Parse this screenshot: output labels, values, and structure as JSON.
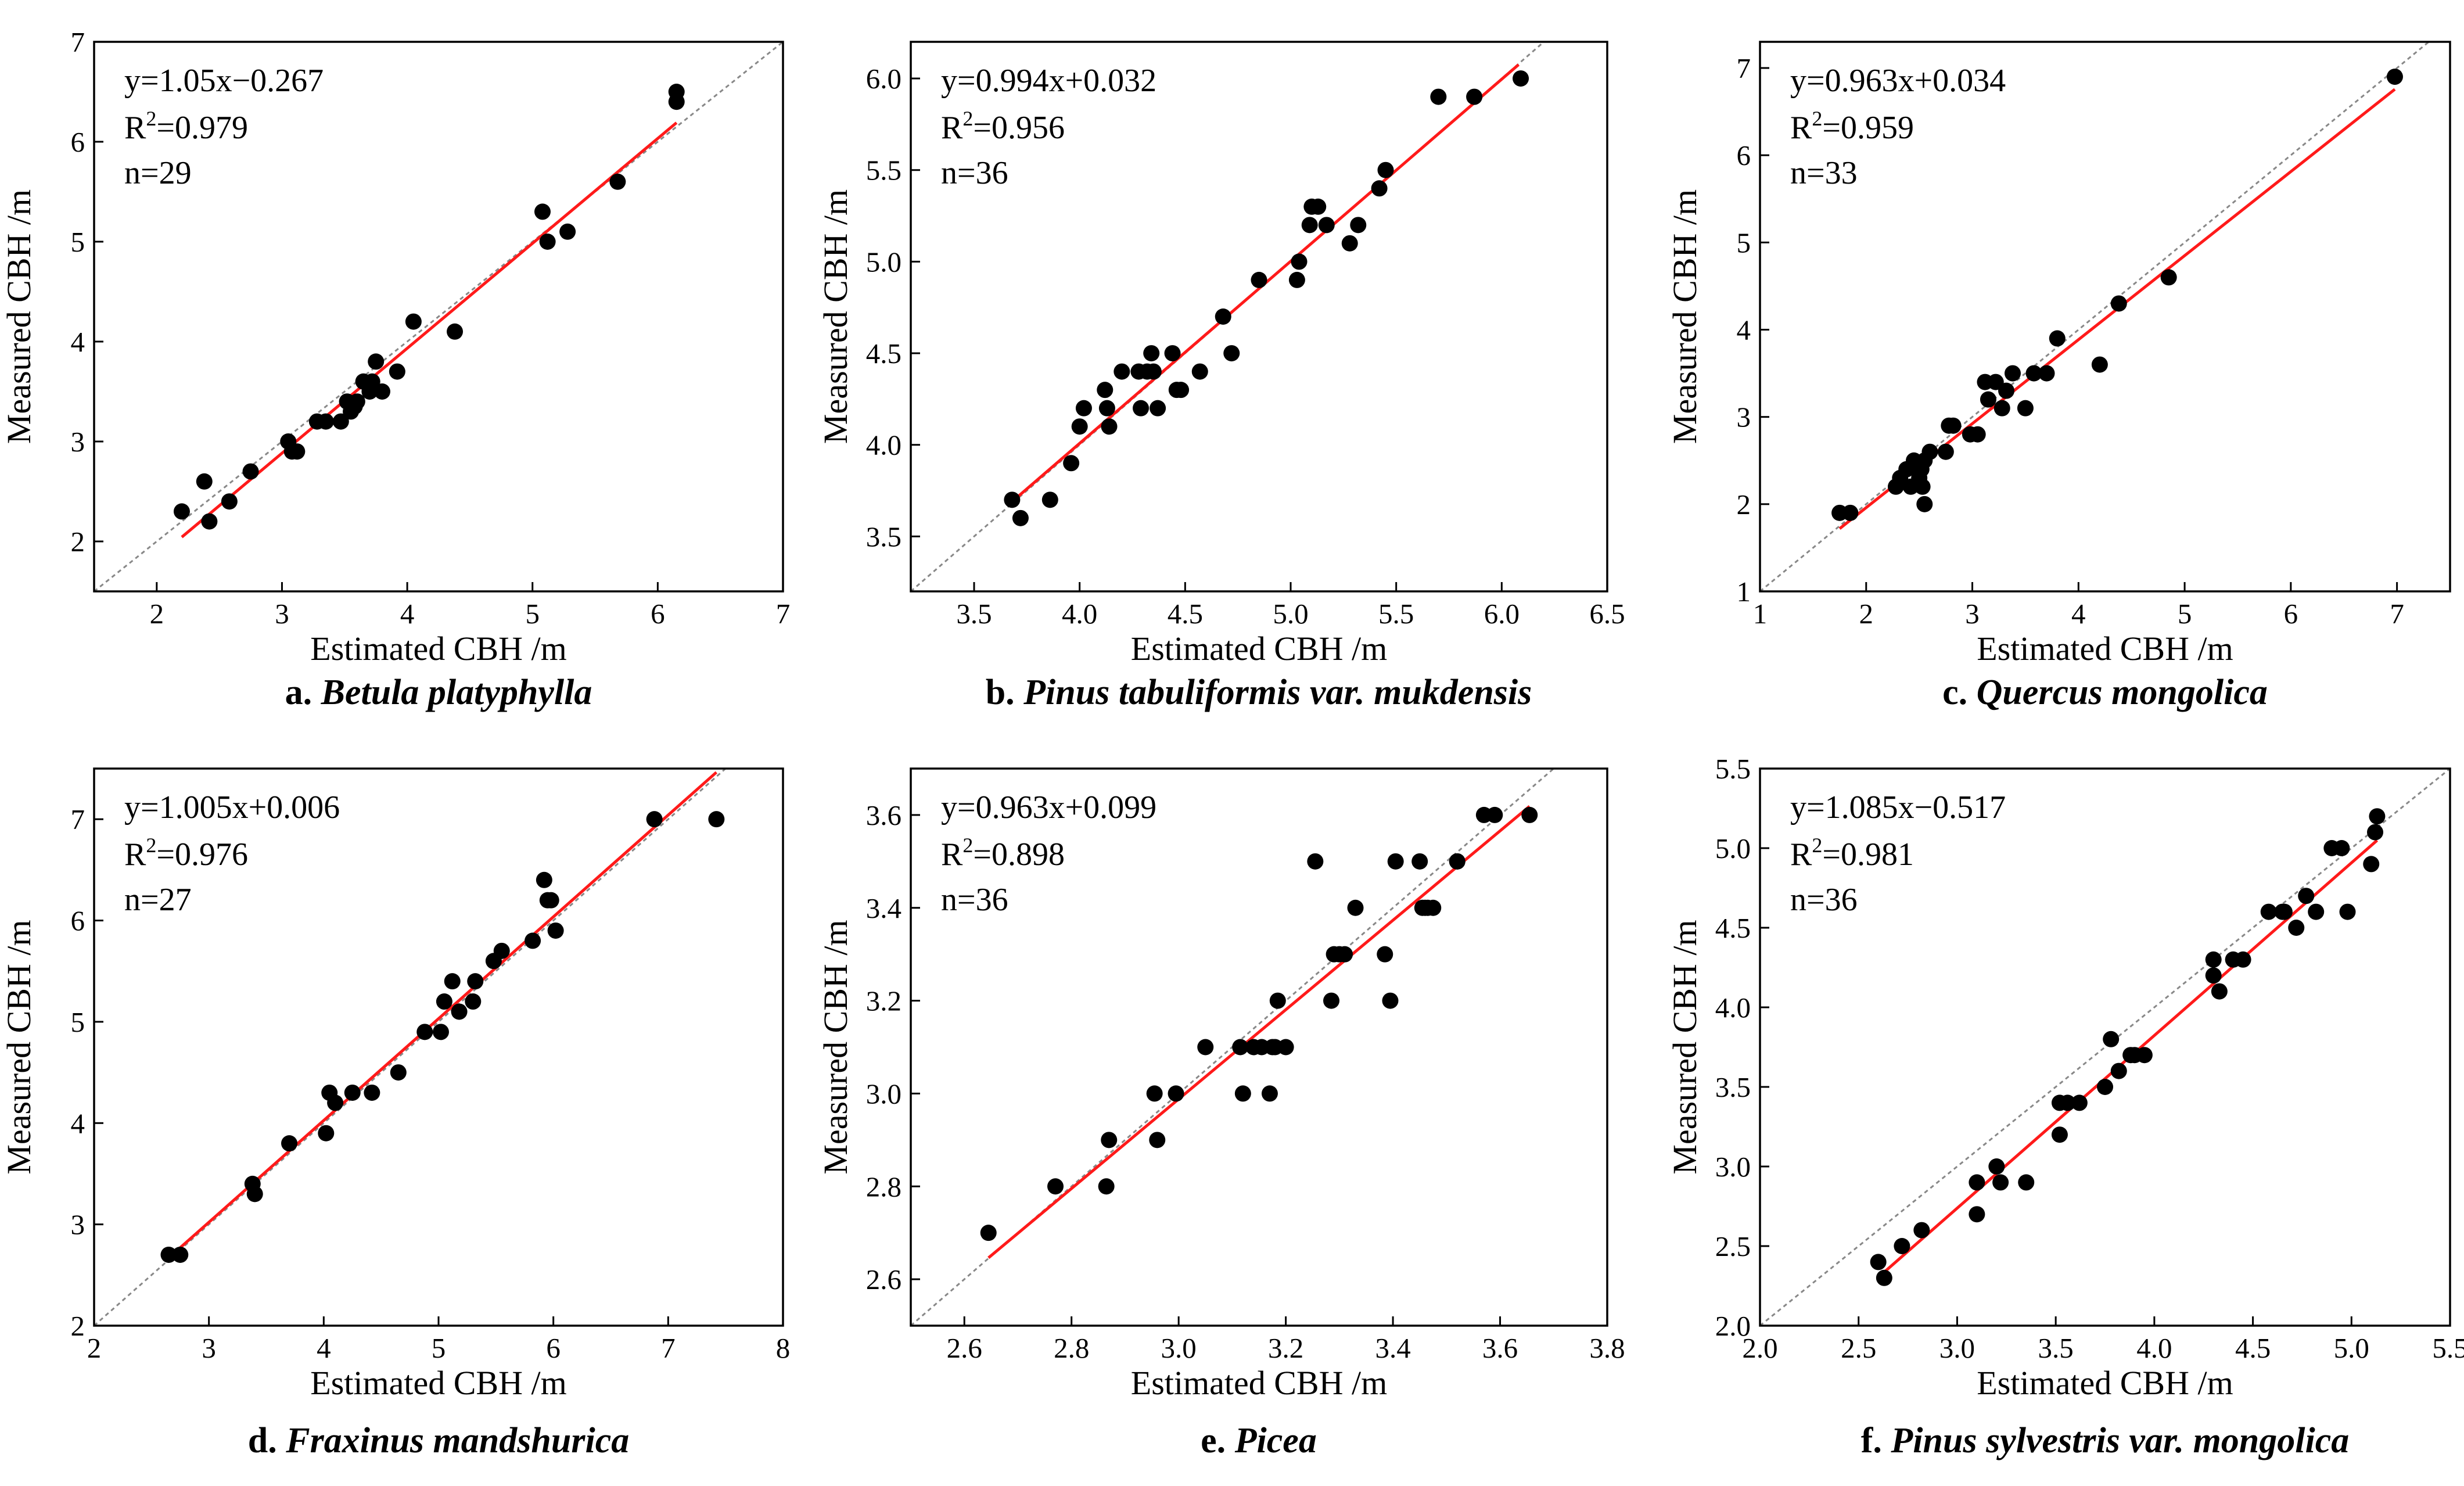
{
  "chart_data": [
    {
      "type": "scatter",
      "panel": "a",
      "caption_prefix": "a. ",
      "caption_species": "Betula platyphylla",
      "xlabel": "Estimated CBH /m",
      "ylabel": "Measured CBH /m",
      "xlim": [
        1.5,
        7
      ],
      "ylim": [
        1.5,
        7
      ],
      "xticks": [
        2,
        3,
        4,
        5,
        6,
        7
      ],
      "yticks": [
        2,
        3,
        4,
        5,
        6,
        7
      ],
      "xtick_labels": [
        "2",
        "3",
        "4",
        "5",
        "6",
        "7"
      ],
      "ytick_labels": [
        "2",
        "3",
        "4",
        "5",
        "6",
        "7"
      ],
      "equation": "y=1.05x−0.267",
      "r2_prefix": "R",
      "r2_sup": "2",
      "r2_value": "=0.979",
      "n_label": "n=29",
      "fit": {
        "slope": 1.05,
        "intercept": -0.267,
        "x_range": [
          2.2,
          6.15
        ]
      },
      "identity_line": true,
      "points": [
        [
          2.2,
          2.3
        ],
        [
          2.38,
          2.6
        ],
        [
          2.42,
          2.2
        ],
        [
          2.58,
          2.4
        ],
        [
          2.75,
          2.7
        ],
        [
          3.05,
          3.0
        ],
        [
          3.08,
          2.9
        ],
        [
          3.12,
          2.9
        ],
        [
          3.28,
          3.2
        ],
        [
          3.35,
          3.2
        ],
        [
          3.47,
          3.2
        ],
        [
          3.52,
          3.4
        ],
        [
          3.55,
          3.3
        ],
        [
          3.6,
          3.4
        ],
        [
          3.65,
          3.6
        ],
        [
          3.7,
          3.5
        ],
        [
          3.72,
          3.6
        ],
        [
          3.75,
          3.8
        ],
        [
          3.8,
          3.5
        ],
        [
          3.92,
          3.7
        ],
        [
          4.05,
          4.2
        ],
        [
          4.38,
          4.1
        ],
        [
          5.08,
          5.3
        ],
        [
          5.12,
          5.0
        ],
        [
          5.28,
          5.1
        ],
        [
          5.68,
          5.6
        ],
        [
          6.15,
          6.5
        ],
        [
          6.15,
          6.4
        ],
        [
          3.58,
          3.35
        ]
      ]
    },
    {
      "type": "scatter",
      "panel": "b",
      "caption_prefix": "b. ",
      "caption_species": "Pinus tabuliformis var. mukdensis",
      "xlabel": "Estimated CBH /m",
      "ylabel": "Measured CBH /m",
      "xlim": [
        3.2,
        6.5
      ],
      "ylim": [
        3.2,
        6.2
      ],
      "xticks": [
        3.5,
        4.0,
        4.5,
        5.0,
        5.5,
        6.0,
        6.5
      ],
      "yticks": [
        3.5,
        4.0,
        4.5,
        5.0,
        5.5,
        6.0
      ],
      "xtick_labels": [
        "3.5",
        "4.0",
        "4.5",
        "5.0",
        "5.5",
        "6.0",
        "6.5"
      ],
      "ytick_labels": [
        "3.5",
        "4.0",
        "4.5",
        "5.0",
        "5.5",
        "6.0"
      ],
      "equation": "y=0.994x+0.032",
      "r2_prefix": "R",
      "r2_sup": "2",
      "r2_value": "=0.956",
      "n_label": "n=36",
      "fit": {
        "slope": 0.994,
        "intercept": 0.032,
        "x_range": [
          3.68,
          6.08
        ]
      },
      "identity_line": true,
      "points": [
        [
          3.68,
          3.7
        ],
        [
          3.72,
          3.6
        ],
        [
          3.86,
          3.7
        ],
        [
          3.96,
          3.9
        ],
        [
          4.0,
          4.1
        ],
        [
          4.02,
          4.2
        ],
        [
          4.12,
          4.3
        ],
        [
          4.13,
          4.2
        ],
        [
          4.14,
          4.1
        ],
        [
          4.2,
          4.4
        ],
        [
          4.28,
          4.4
        ],
        [
          4.29,
          4.2
        ],
        [
          4.32,
          4.4
        ],
        [
          4.34,
          4.5
        ],
        [
          4.35,
          4.4
        ],
        [
          4.37,
          4.2
        ],
        [
          4.44,
          4.5
        ],
        [
          4.46,
          4.3
        ],
        [
          4.48,
          4.3
        ],
        [
          4.57,
          4.4
        ],
        [
          4.68,
          4.7
        ],
        [
          4.72,
          4.5
        ],
        [
          4.85,
          4.9
        ],
        [
          5.03,
          4.9
        ],
        [
          5.04,
          5.0
        ],
        [
          5.09,
          5.2
        ],
        [
          5.1,
          5.3
        ],
        [
          5.13,
          5.3
        ],
        [
          5.17,
          5.2
        ],
        [
          5.28,
          5.1
        ],
        [
          5.32,
          5.2
        ],
        [
          5.42,
          5.4
        ],
        [
          5.45,
          5.5
        ],
        [
          5.7,
          5.9
        ],
        [
          5.87,
          5.9
        ],
        [
          6.09,
          6.0
        ]
      ]
    },
    {
      "type": "scatter",
      "panel": "c",
      "caption_prefix": "c. ",
      "caption_species": "Quercus mongolica",
      "xlabel": "Estimated CBH /m",
      "ylabel": "Measured CBH /m",
      "xlim": [
        1,
        7.5
      ],
      "ylim": [
        1,
        7.3
      ],
      "xticks": [
        1,
        2,
        3,
        4,
        5,
        6,
        7
      ],
      "yticks": [
        1,
        2,
        3,
        4,
        5,
        6,
        7
      ],
      "xtick_labels": [
        "1",
        "2",
        "3",
        "4",
        "5",
        "6",
        "7"
      ],
      "ytick_labels": [
        "1",
        "2",
        "3",
        "4",
        "5",
        "6",
        "7"
      ],
      "equation": "y=0.963x+0.034",
      "r2_prefix": "R",
      "r2_sup": "2",
      "r2_value": "=0.959",
      "n_label": "n=33",
      "fit": {
        "slope": 0.963,
        "intercept": 0.034,
        "x_range": [
          1.75,
          6.98
        ]
      },
      "identity_line": true,
      "points": [
        [
          1.75,
          1.9
        ],
        [
          1.85,
          1.9
        ],
        [
          2.28,
          2.2
        ],
        [
          2.32,
          2.3
        ],
        [
          2.38,
          2.4
        ],
        [
          2.42,
          2.2
        ],
        [
          2.45,
          2.5
        ],
        [
          2.5,
          2.3
        ],
        [
          2.52,
          2.4
        ],
        [
          2.55,
          2.5
        ],
        [
          2.53,
          2.2
        ],
        [
          2.55,
          2.0
        ],
        [
          2.6,
          2.6
        ],
        [
          2.75,
          2.6
        ],
        [
          2.78,
          2.9
        ],
        [
          2.82,
          2.9
        ],
        [
          2.98,
          2.8
        ],
        [
          3.05,
          2.8
        ],
        [
          3.12,
          3.4
        ],
        [
          3.15,
          3.2
        ],
        [
          3.22,
          3.4
        ],
        [
          3.28,
          3.1
        ],
        [
          3.32,
          3.3
        ],
        [
          3.38,
          3.5
        ],
        [
          3.5,
          3.1
        ],
        [
          3.58,
          3.5
        ],
        [
          3.7,
          3.5
        ],
        [
          3.8,
          3.9
        ],
        [
          4.2,
          3.6
        ],
        [
          4.38,
          4.3
        ],
        [
          4.85,
          4.6
        ],
        [
          6.98,
          6.9
        ],
        [
          2.48,
          2.45
        ]
      ]
    },
    {
      "type": "scatter",
      "panel": "d",
      "caption_prefix": "d. ",
      "caption_species": "Fraxinus mandshurica",
      "xlabel": "Estimated CBH /m",
      "ylabel": "Measured CBH /m",
      "xlim": [
        2,
        8
      ],
      "ylim": [
        2,
        7.5
      ],
      "xticks": [
        2,
        3,
        4,
        5,
        6,
        7,
        8
      ],
      "yticks": [
        2,
        3,
        4,
        5,
        6,
        7
      ],
      "xtick_labels": [
        "2",
        "3",
        "4",
        "5",
        "6",
        "7",
        "8"
      ],
      "ytick_labels": [
        "2",
        "3",
        "4",
        "5",
        "6",
        "7"
      ],
      "equation": "y=1.005x+0.006",
      "r2_prefix": "R",
      "r2_sup": "2",
      "r2_value": "=0.976",
      "n_label": "n=27",
      "fit": {
        "slope": 1.005,
        "intercept": 0.006,
        "x_range": [
          2.7,
          7.42
        ]
      },
      "identity_line": true,
      "points": [
        [
          2.65,
          2.7
        ],
        [
          2.75,
          2.7
        ],
        [
          3.38,
          3.4
        ],
        [
          3.4,
          3.3
        ],
        [
          3.7,
          3.8
        ],
        [
          4.02,
          3.9
        ],
        [
          4.05,
          4.3
        ],
        [
          4.1,
          4.2
        ],
        [
          4.25,
          4.3
        ],
        [
          4.42,
          4.3
        ],
        [
          4.65,
          4.5
        ],
        [
          4.88,
          4.9
        ],
        [
          5.02,
          4.9
        ],
        [
          5.05,
          5.2
        ],
        [
          5.12,
          5.4
        ],
        [
          5.18,
          5.1
        ],
        [
          5.3,
          5.2
        ],
        [
          5.32,
          5.4
        ],
        [
          5.48,
          5.6
        ],
        [
          5.55,
          5.7
        ],
        [
          5.82,
          5.8
        ],
        [
          5.92,
          6.4
        ],
        [
          5.95,
          6.2
        ],
        [
          5.98,
          6.2
        ],
        [
          6.02,
          5.9
        ],
        [
          6.88,
          7.0
        ],
        [
          7.42,
          7.0
        ]
      ]
    },
    {
      "type": "scatter",
      "panel": "e",
      "caption_prefix": "e. ",
      "caption_species": "Picea",
      "xlabel": "Estimated CBH /m",
      "ylabel": "Measured CBH /m",
      "xlim": [
        2.5,
        3.8
      ],
      "ylim": [
        2.5,
        3.7
      ],
      "xticks": [
        2.6,
        2.8,
        3.0,
        3.2,
        3.4,
        3.6,
        3.8
      ],
      "yticks": [
        2.6,
        2.8,
        3.0,
        3.2,
        3.4,
        3.6
      ],
      "xtick_labels": [
        "2.6",
        "2.8",
        "3.0",
        "3.2",
        "3.4",
        "3.6",
        "3.8"
      ],
      "ytick_labels": [
        "2.6",
        "2.8",
        "3.0",
        "3.2",
        "3.4",
        "3.6"
      ],
      "equation": "y=0.963x+0.099",
      "r2_prefix": "R",
      "r2_sup": "2",
      "r2_value": "=0.898",
      "n_label": "n=36",
      "fit": {
        "slope": 0.963,
        "intercept": 0.099,
        "x_range": [
          2.645,
          3.655
        ]
      },
      "identity_line": true,
      "points": [
        [
          2.645,
          2.7
        ],
        [
          2.77,
          2.8
        ],
        [
          2.865,
          2.8
        ],
        [
          2.87,
          2.9
        ],
        [
          2.955,
          3.0
        ],
        [
          2.96,
          2.9
        ],
        [
          2.995,
          3.0
        ],
        [
          3.05,
          3.1
        ],
        [
          3.115,
          3.1
        ],
        [
          3.12,
          3.0
        ],
        [
          3.14,
          3.1
        ],
        [
          3.155,
          3.1
        ],
        [
          3.17,
          3.0
        ],
        [
          3.18,
          3.1
        ],
        [
          3.185,
          3.2
        ],
        [
          3.2,
          3.1
        ],
        [
          3.255,
          3.5
        ],
        [
          3.285,
          3.2
        ],
        [
          3.29,
          3.3
        ],
        [
          3.31,
          3.3
        ],
        [
          3.33,
          3.4
        ],
        [
          3.385,
          3.3
        ],
        [
          3.395,
          3.2
        ],
        [
          3.405,
          3.5
        ],
        [
          3.45,
          3.5
        ],
        [
          3.455,
          3.4
        ],
        [
          3.465,
          3.4
        ],
        [
          3.475,
          3.4
        ],
        [
          3.52,
          3.5
        ],
        [
          3.57,
          3.6
        ],
        [
          3.59,
          3.6
        ],
        [
          3.655,
          3.6
        ],
        [
          3.175,
          3.1
        ],
        [
          3.3,
          3.3
        ],
        [
          3.46,
          3.4
        ],
        [
          3.52,
          3.5
        ]
      ]
    },
    {
      "type": "scatter",
      "panel": "f",
      "caption_prefix": "f. ",
      "caption_species": "Pinus sylvestris var. mongolica",
      "xlabel": "Estimated CBH /m",
      "ylabel": "Measured CBH /m",
      "xlim": [
        2.0,
        5.5
      ],
      "ylim": [
        2.0,
        5.5
      ],
      "xticks": [
        2.0,
        2.5,
        3.0,
        3.5,
        4.0,
        4.5,
        5.0,
        5.5
      ],
      "yticks": [
        2.0,
        2.5,
        3.0,
        3.5,
        4.0,
        4.5,
        5.0,
        5.5
      ],
      "xtick_labels": [
        "2.0",
        "2.5",
        "3.0",
        "3.5",
        "4.0",
        "4.5",
        "5.0",
        "5.5"
      ],
      "ytick_labels": [
        "2.0",
        "2.5",
        "3.0",
        "3.5",
        "4.0",
        "4.5",
        "5.0",
        "5.5"
      ],
      "equation": "y=1.085x−0.517",
      "r2_prefix": "R",
      "r2_sup": "2",
      "r2_value": "=0.981",
      "n_label": "n=36",
      "fit": {
        "slope": 1.085,
        "intercept": -0.517,
        "x_range": [
          2.6,
          5.13
        ]
      },
      "identity_line": true,
      "points": [
        [
          2.6,
          2.4
        ],
        [
          2.63,
          2.3
        ],
        [
          2.72,
          2.5
        ],
        [
          2.82,
          2.6
        ],
        [
          3.1,
          2.9
        ],
        [
          3.1,
          2.7
        ],
        [
          3.2,
          3.0
        ],
        [
          3.22,
          2.9
        ],
        [
          3.35,
          2.9
        ],
        [
          3.52,
          3.2
        ],
        [
          3.52,
          3.4
        ],
        [
          3.56,
          3.4
        ],
        [
          3.62,
          3.4
        ],
        [
          3.75,
          3.5
        ],
        [
          3.78,
          3.8
        ],
        [
          3.82,
          3.6
        ],
        [
          3.88,
          3.7
        ],
        [
          3.95,
          3.7
        ],
        [
          4.3,
          4.3
        ],
        [
          4.3,
          4.2
        ],
        [
          4.33,
          4.1
        ],
        [
          4.4,
          4.3
        ],
        [
          4.45,
          4.3
        ],
        [
          4.58,
          4.6
        ],
        [
          4.65,
          4.6
        ],
        [
          4.72,
          4.5
        ],
        [
          4.77,
          4.7
        ],
        [
          4.82,
          4.6
        ],
        [
          4.9,
          5.0
        ],
        [
          4.95,
          5.0
        ],
        [
          4.98,
          4.6
        ],
        [
          5.1,
          4.9
        ],
        [
          5.12,
          5.1
        ],
        [
          5.13,
          5.2
        ],
        [
          3.9,
          3.7
        ],
        [
          4.66,
          4.6
        ]
      ]
    }
  ]
}
